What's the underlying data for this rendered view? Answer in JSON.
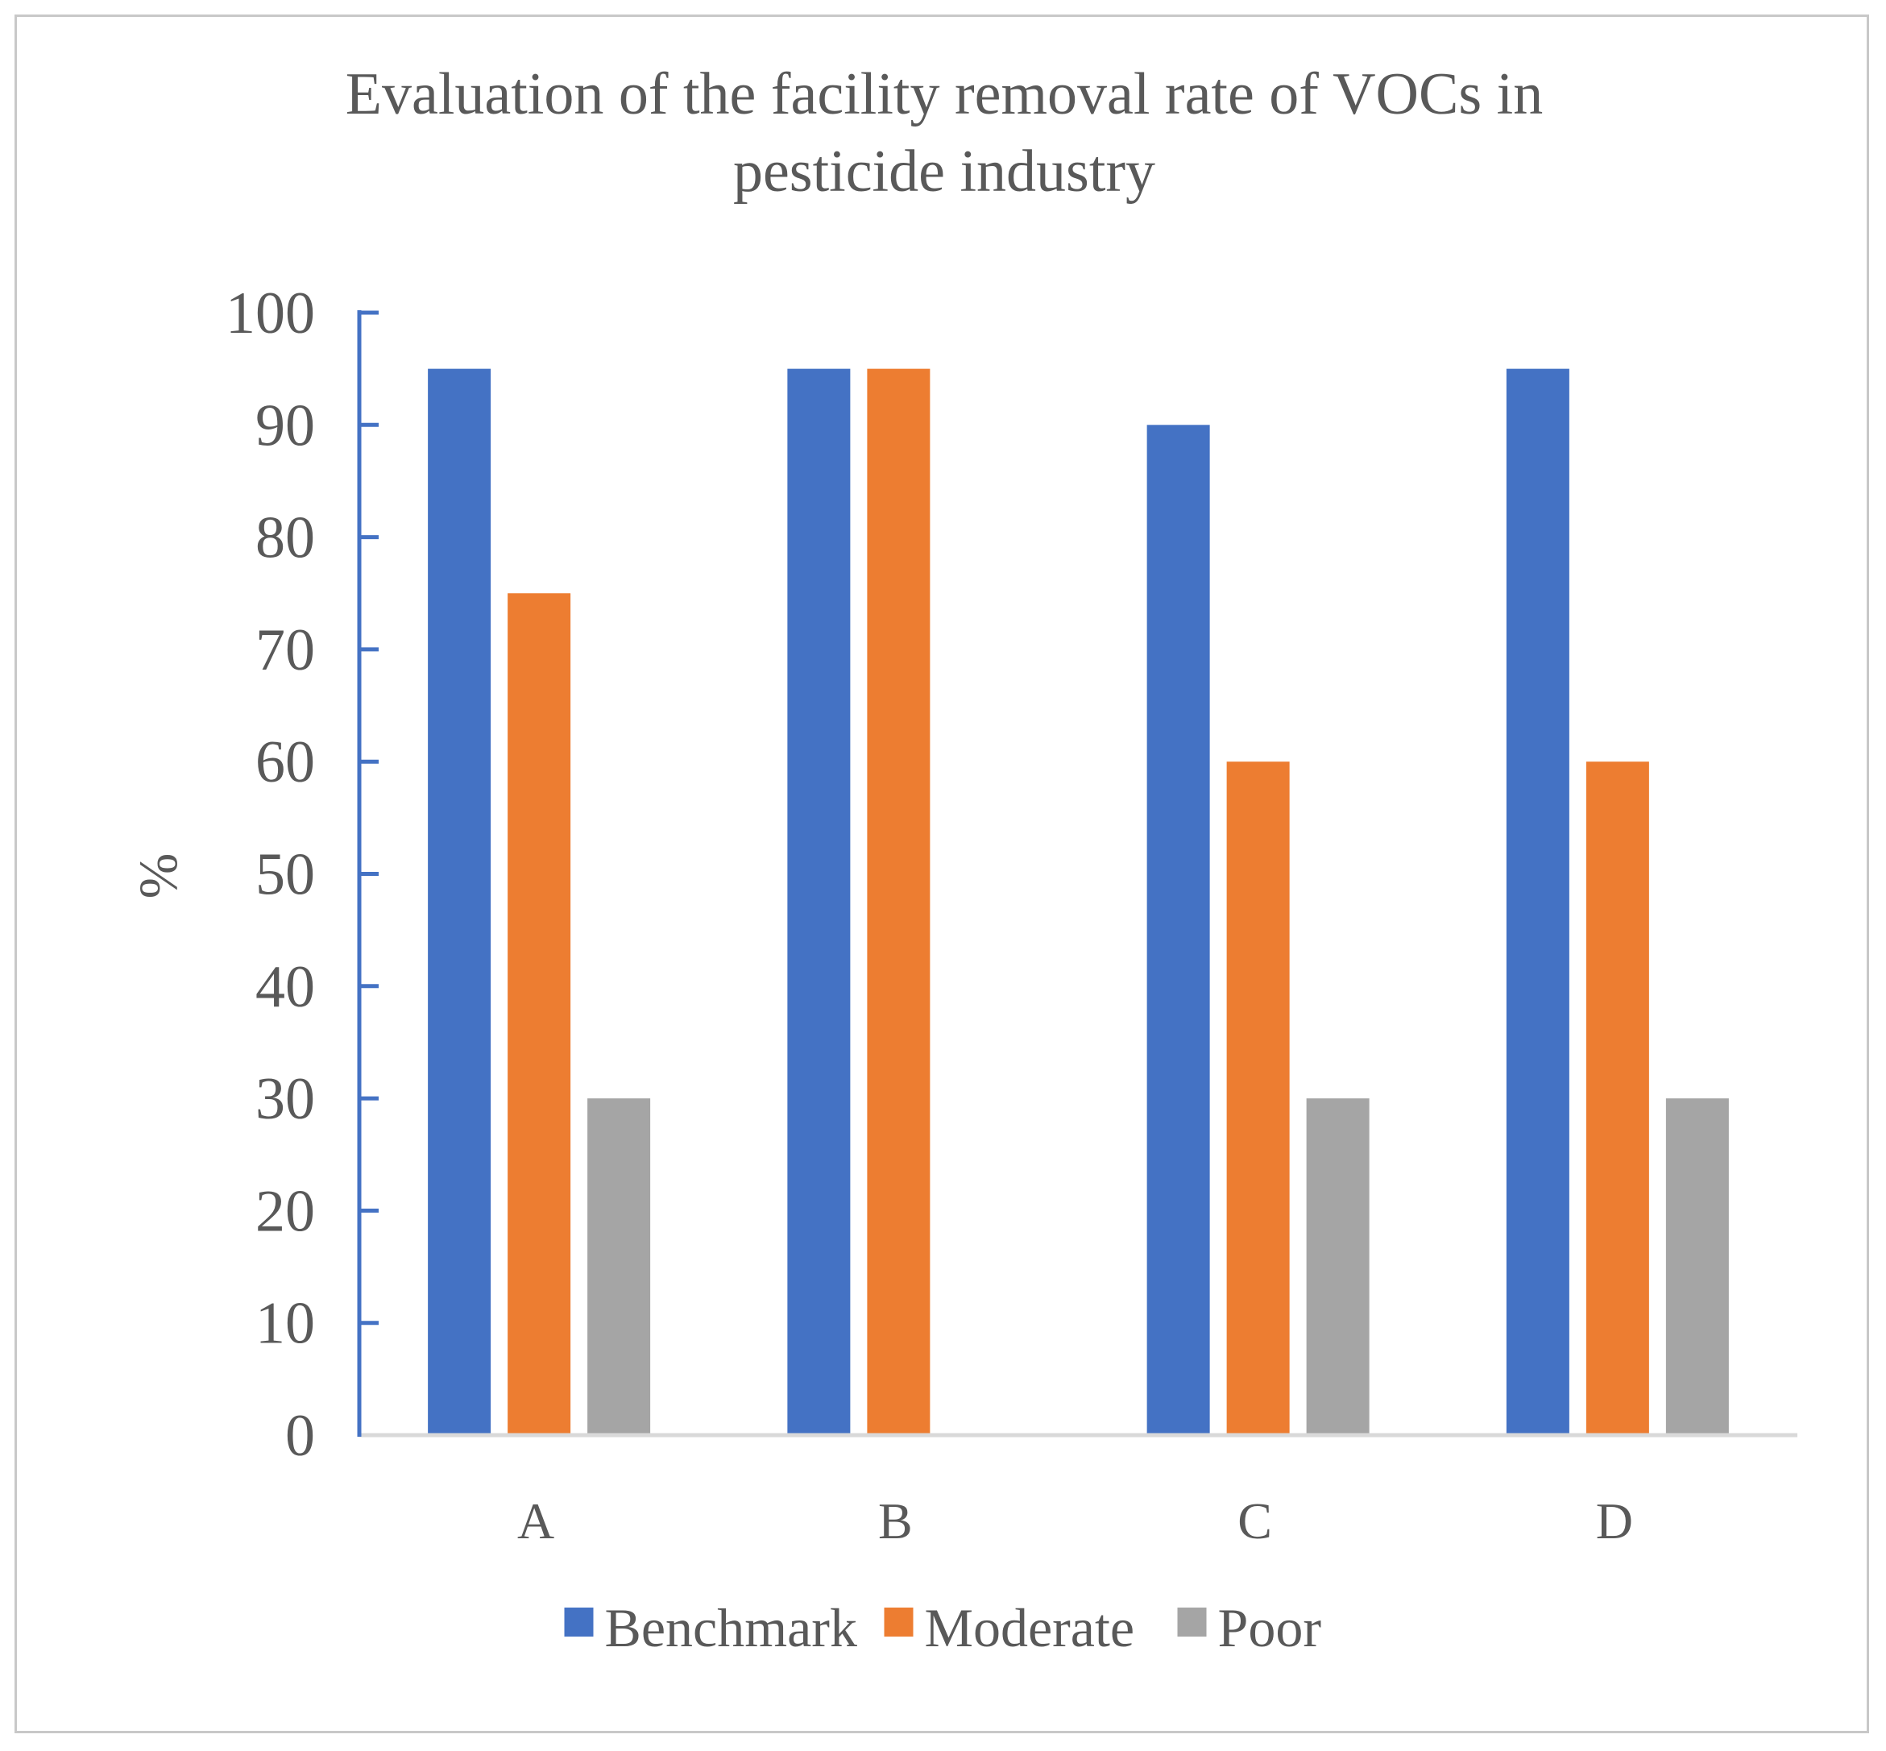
{
  "chart_data": {
    "type": "bar",
    "title": "Evaluation of the facility removal rate of VOCs in pesticide industry",
    "title_lines": [
      "Evaluation of the facility removal rate of VOCs in",
      "pesticide industry"
    ],
    "xlabel": "",
    "ylabel": "%",
    "ylim": [
      0,
      100
    ],
    "yticks": [
      0,
      10,
      20,
      30,
      40,
      50,
      60,
      70,
      80,
      90,
      100
    ],
    "categories": [
      "A",
      "B",
      "C",
      "D"
    ],
    "series": [
      {
        "name": "Benchmark",
        "color": "#4472c4",
        "values": [
          95,
          95,
          90,
          95
        ]
      },
      {
        "name": "Moderate",
        "color": "#ed7d31",
        "values": [
          75,
          95,
          60,
          60
        ]
      },
      {
        "name": "Poor",
        "color": "#a5a5a5",
        "values": [
          30,
          0,
          30,
          30
        ]
      }
    ],
    "grid": false,
    "legend": "bottom",
    "axis_color": "#4472c4",
    "baseline_color": "#d9d9d9"
  }
}
